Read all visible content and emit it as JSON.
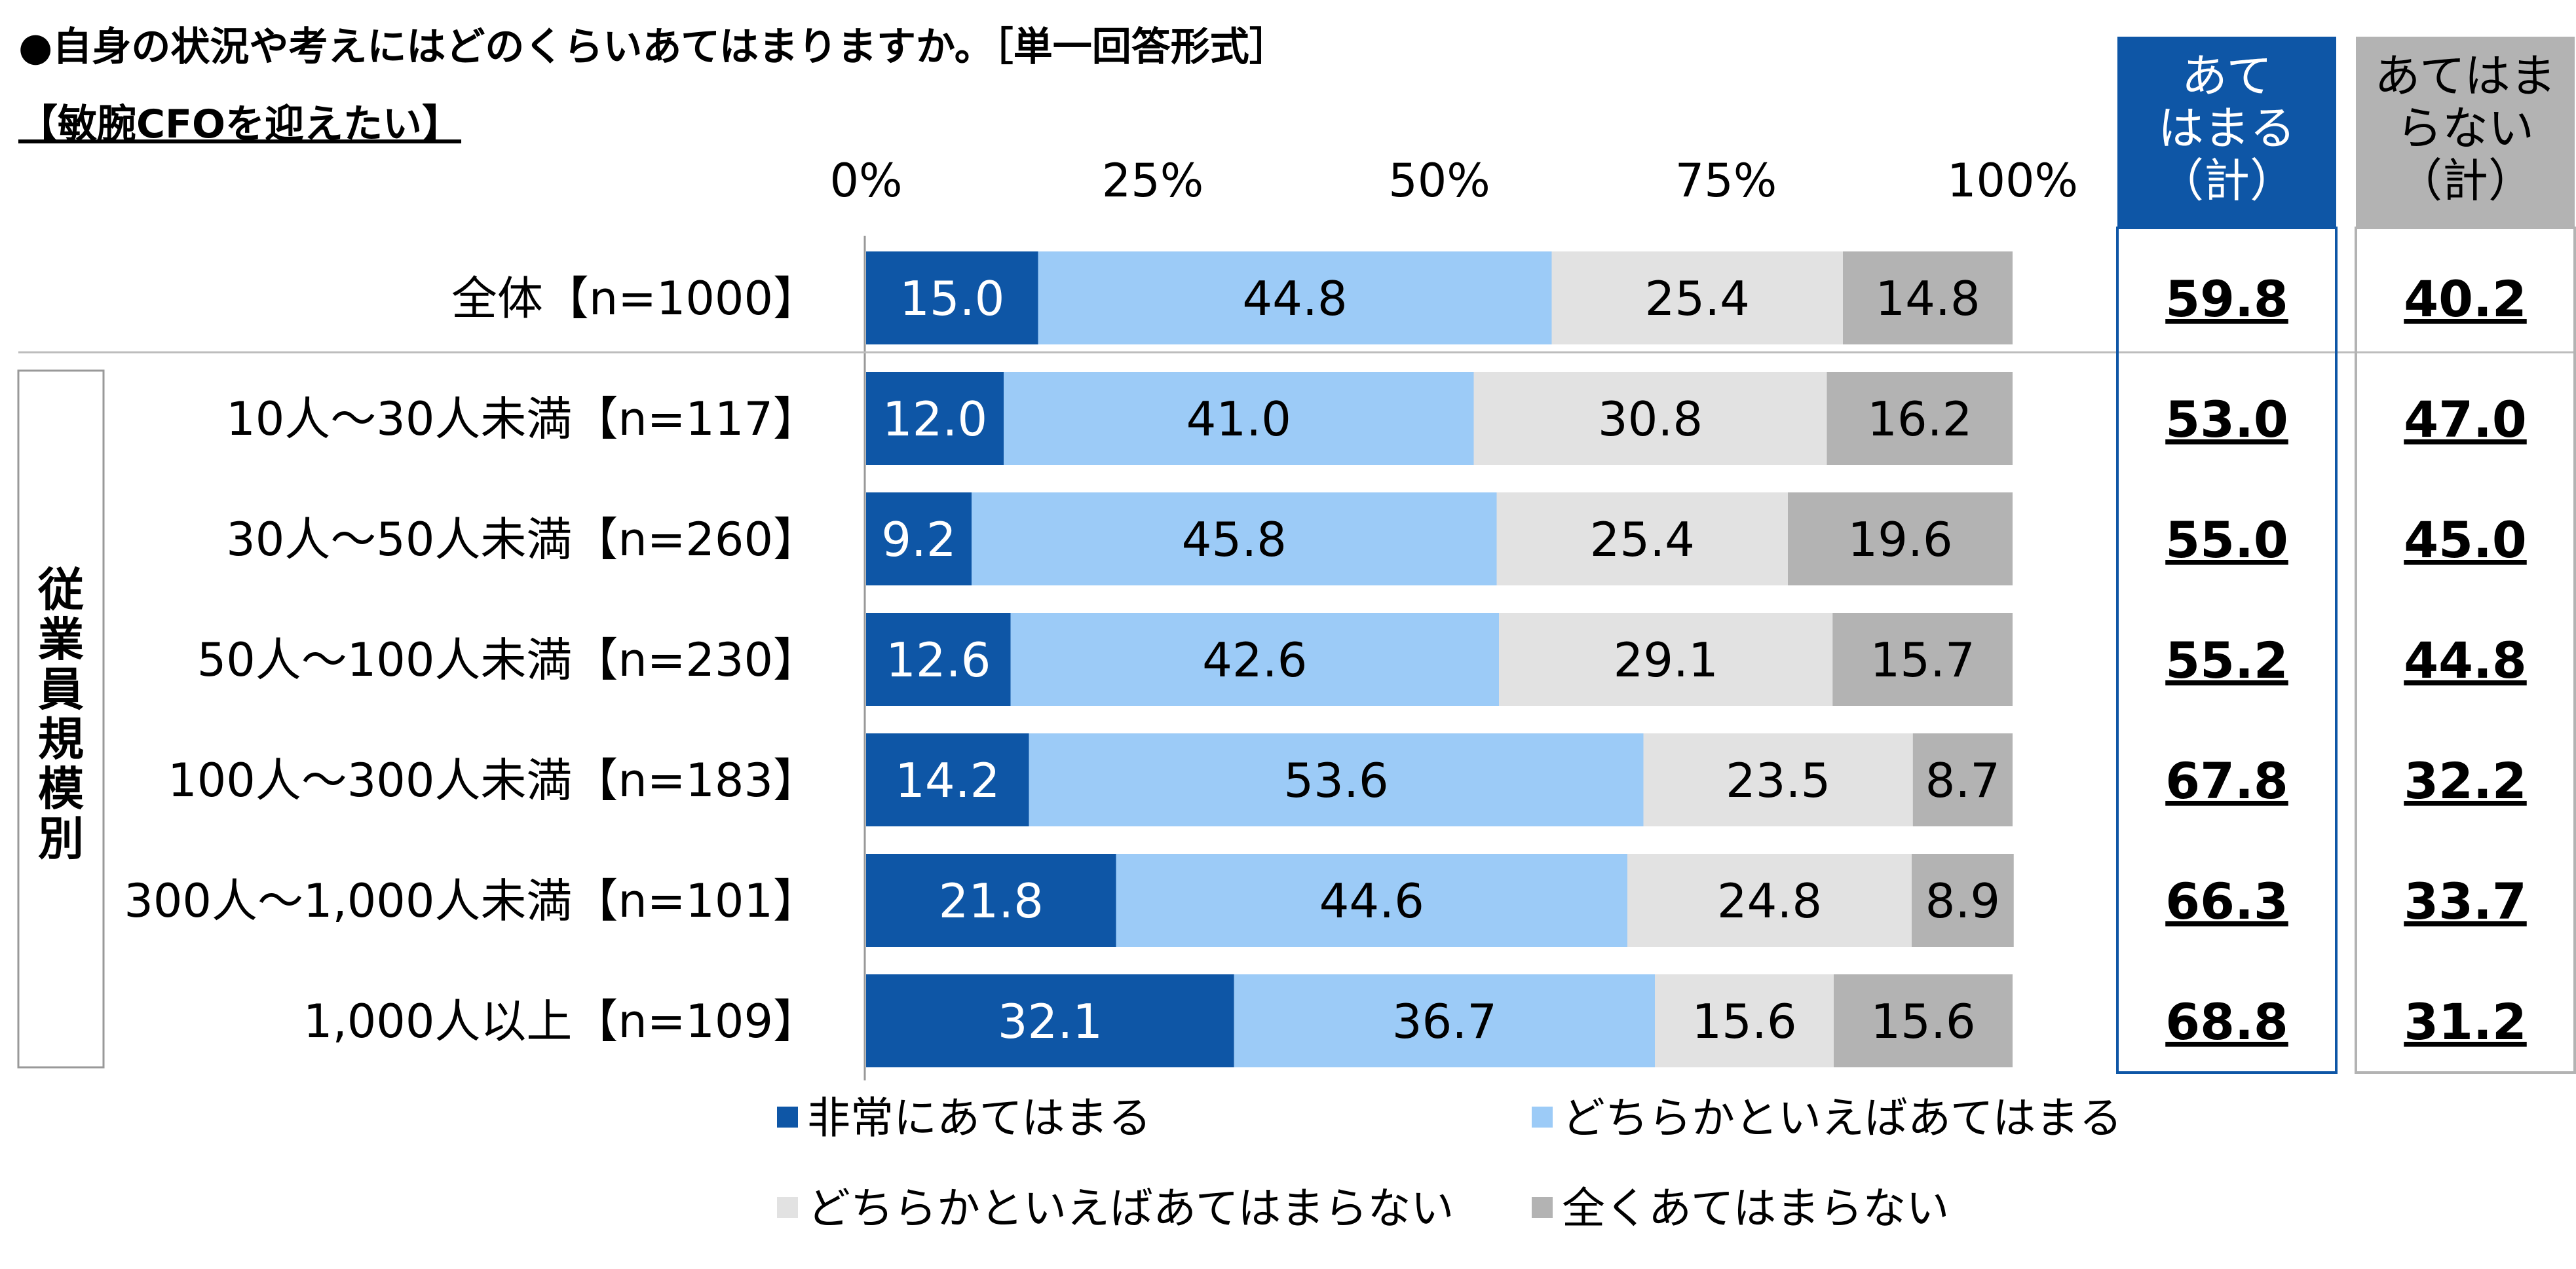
{
  "chart_data": {
    "type": "bar",
    "orientation": "horizontal",
    "stacked": true,
    "title": "●自身の状況や考えにはどのくらいあてはまりますか。［単一回答形式］",
    "subtitle": "【敏腕CFOを迎えたい】",
    "x_ticks": [
      "0%",
      "25%",
      "50%",
      "75%",
      "100%"
    ],
    "xlim": [
      0,
      100
    ],
    "group_label": "従業員規模別",
    "categories": [
      "全体【n=1000】",
      "10人～30人未満【n=117】",
      "30人～50人未満【n=260】",
      "50人～100人未満【n=230】",
      "100人～300人未満【n=183】",
      "300人～1,000人未満【n=101】",
      "1,000人以上【n=109】"
    ],
    "series": [
      {
        "name": "非常にあてはまる",
        "color": "#0e56a6",
        "label_color": "#ffffff",
        "values": [
          15.0,
          12.0,
          9.2,
          12.6,
          14.2,
          21.8,
          32.1
        ],
        "labels": [
          "15.0",
          "12.0",
          "9.2",
          "12.6",
          "14.2",
          "21.8",
          "32.1"
        ]
      },
      {
        "name": "どちらかといえばあてはまる",
        "color": "#9ccbf7",
        "label_color": "#000000",
        "values": [
          44.8,
          41.0,
          45.8,
          42.6,
          53.6,
          44.6,
          36.7
        ],
        "labels": [
          "44.8",
          "41.0",
          "45.8",
          "42.6",
          "53.6",
          "44.6",
          "36.7"
        ]
      },
      {
        "name": "どちらかといえばあてはまらない",
        "color": "#e2e2e2",
        "label_color": "#000000",
        "values": [
          25.4,
          30.8,
          25.4,
          29.1,
          23.5,
          24.8,
          15.6
        ],
        "labels": [
          "25.4",
          "30.8",
          "25.4",
          "29.1",
          "23.5",
          "24.8",
          "15.6"
        ]
      },
      {
        "name": "全くあてはまらない",
        "color": "#b3b3b3",
        "label_color": "#000000",
        "values": [
          14.8,
          16.2,
          19.6,
          15.7,
          8.7,
          8.9,
          15.6
        ],
        "labels": [
          "14.8",
          "16.2",
          "19.6",
          "15.7",
          "8.7",
          "8.9",
          "15.6"
        ]
      }
    ],
    "totals": [
      {
        "header": [
          "あて",
          "はまる",
          "（計）"
        ],
        "header_bg": "#0e56a6",
        "header_color": "#ffffff",
        "border": "#0e56a6",
        "values": [
          "59.8",
          "53.0",
          "55.0",
          "55.2",
          "67.8",
          "66.3",
          "68.8"
        ]
      },
      {
        "header": [
          "あてはま",
          "らない",
          "（計）"
        ],
        "header_bg": "#b3b3b3",
        "header_color": "#000000",
        "border": "#b3b3b3",
        "values": [
          "40.2",
          "47.0",
          "45.0",
          "44.8",
          "32.2",
          "33.7",
          "31.2"
        ]
      }
    ],
    "legend": [
      "非常にあてはまる",
      "どちらかといえばあてはまる",
      "どちらかといえばあてはまらない",
      "全くあてはまらない"
    ],
    "legend_position": "bottom",
    "grid": false
  }
}
